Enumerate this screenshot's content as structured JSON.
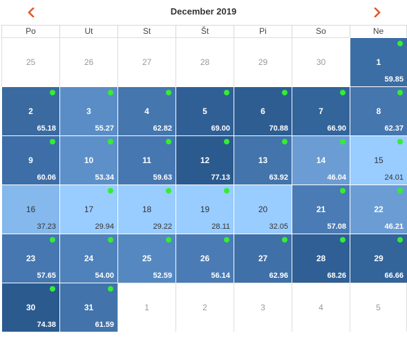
{
  "calendar": {
    "title": "December 2019",
    "prev_icon": "chevron-left-icon",
    "next_icon": "chevron-right-icon",
    "accent_color": "#e05a2b",
    "available_dot_color": "#33ee33",
    "weekdays": [
      "Po",
      "Ut",
      "St",
      "Št",
      "Pi",
      "So",
      "Ne"
    ],
    "cells": [
      {
        "day": "25",
        "in_month": false
      },
      {
        "day": "26",
        "in_month": false
      },
      {
        "day": "27",
        "in_month": false
      },
      {
        "day": "28",
        "in_month": false
      },
      {
        "day": "29",
        "in_month": false
      },
      {
        "day": "30",
        "in_month": false
      },
      {
        "day": "1",
        "in_month": true,
        "price": "59.85",
        "available": true,
        "color": "#3b6ea5"
      },
      {
        "day": "2",
        "in_month": true,
        "price": "65.18",
        "available": true,
        "color": "#3a6aa0"
      },
      {
        "day": "3",
        "in_month": true,
        "price": "55.27",
        "available": true,
        "color": "#5a8dc6"
      },
      {
        "day": "4",
        "in_month": true,
        "price": "62.82",
        "available": true,
        "color": "#4576ad"
      },
      {
        "day": "5",
        "in_month": true,
        "price": "69.00",
        "available": true,
        "color": "#2f5f95"
      },
      {
        "day": "6",
        "in_month": true,
        "price": "70.88",
        "available": true,
        "color": "#2e5d92"
      },
      {
        "day": "7",
        "in_month": true,
        "price": "66.90",
        "available": true,
        "color": "#33649a"
      },
      {
        "day": "8",
        "in_month": true,
        "price": "62.37",
        "available": true,
        "color": "#4576ad"
      },
      {
        "day": "9",
        "in_month": true,
        "price": "60.06",
        "available": true,
        "color": "#3d6ea7"
      },
      {
        "day": "10",
        "in_month": true,
        "price": "53.34",
        "available": true,
        "color": "#5d90c9"
      },
      {
        "day": "11",
        "in_month": true,
        "price": "59.63",
        "available": true,
        "color": "#4677b0"
      },
      {
        "day": "12",
        "in_month": true,
        "price": "77.13",
        "available": true,
        "color": "#2b5a8f"
      },
      {
        "day": "13",
        "in_month": true,
        "price": "63.92",
        "available": true,
        "color": "#4374ab"
      },
      {
        "day": "14",
        "in_month": true,
        "price": "46.04",
        "available": true,
        "color": "#6b9dd4"
      },
      {
        "day": "15",
        "in_month": true,
        "price": "24.01",
        "available": true,
        "color": "#99ccff",
        "light": true
      },
      {
        "day": "16",
        "in_month": true,
        "price": "37.23",
        "available": false,
        "color": "#85b8ec",
        "light": true
      },
      {
        "day": "17",
        "in_month": true,
        "price": "29.94",
        "available": true,
        "color": "#99ccff",
        "light": true
      },
      {
        "day": "18",
        "in_month": true,
        "price": "29.22",
        "available": true,
        "color": "#99ccff",
        "light": true
      },
      {
        "day": "19",
        "in_month": true,
        "price": "28.11",
        "available": true,
        "color": "#99ccff",
        "light": true
      },
      {
        "day": "20",
        "in_month": true,
        "price": "32.05",
        "available": false,
        "color": "#99ccff",
        "light": true
      },
      {
        "day": "21",
        "in_month": true,
        "price": "57.08",
        "available": true,
        "color": "#4a7bb4"
      },
      {
        "day": "22",
        "in_month": true,
        "price": "46.21",
        "available": true,
        "color": "#6b9dd4"
      },
      {
        "day": "23",
        "in_month": true,
        "price": "57.65",
        "available": true,
        "color": "#4677b0"
      },
      {
        "day": "24",
        "in_month": true,
        "price": "54.00",
        "available": true,
        "color": "#4f81ba"
      },
      {
        "day": "25",
        "in_month": true,
        "price": "52.59",
        "available": true,
        "color": "#5588c1"
      },
      {
        "day": "26",
        "in_month": true,
        "price": "56.14",
        "available": true,
        "color": "#4a7bb4"
      },
      {
        "day": "27",
        "in_month": true,
        "price": "62.96",
        "available": true,
        "color": "#3f70a8"
      },
      {
        "day": "28",
        "in_month": true,
        "price": "68.26",
        "available": true,
        "color": "#2f5f95"
      },
      {
        "day": "29",
        "in_month": true,
        "price": "66.66",
        "available": true,
        "color": "#33649a"
      },
      {
        "day": "30",
        "in_month": true,
        "price": "74.38",
        "available": true,
        "color": "#2b5a8f"
      },
      {
        "day": "31",
        "in_month": true,
        "price": "61.59",
        "available": true,
        "color": "#4273aa"
      },
      {
        "day": "1",
        "in_month": false
      },
      {
        "day": "2",
        "in_month": false
      },
      {
        "day": "3",
        "in_month": false
      },
      {
        "day": "4",
        "in_month": false
      },
      {
        "day": "5",
        "in_month": false
      }
    ]
  }
}
